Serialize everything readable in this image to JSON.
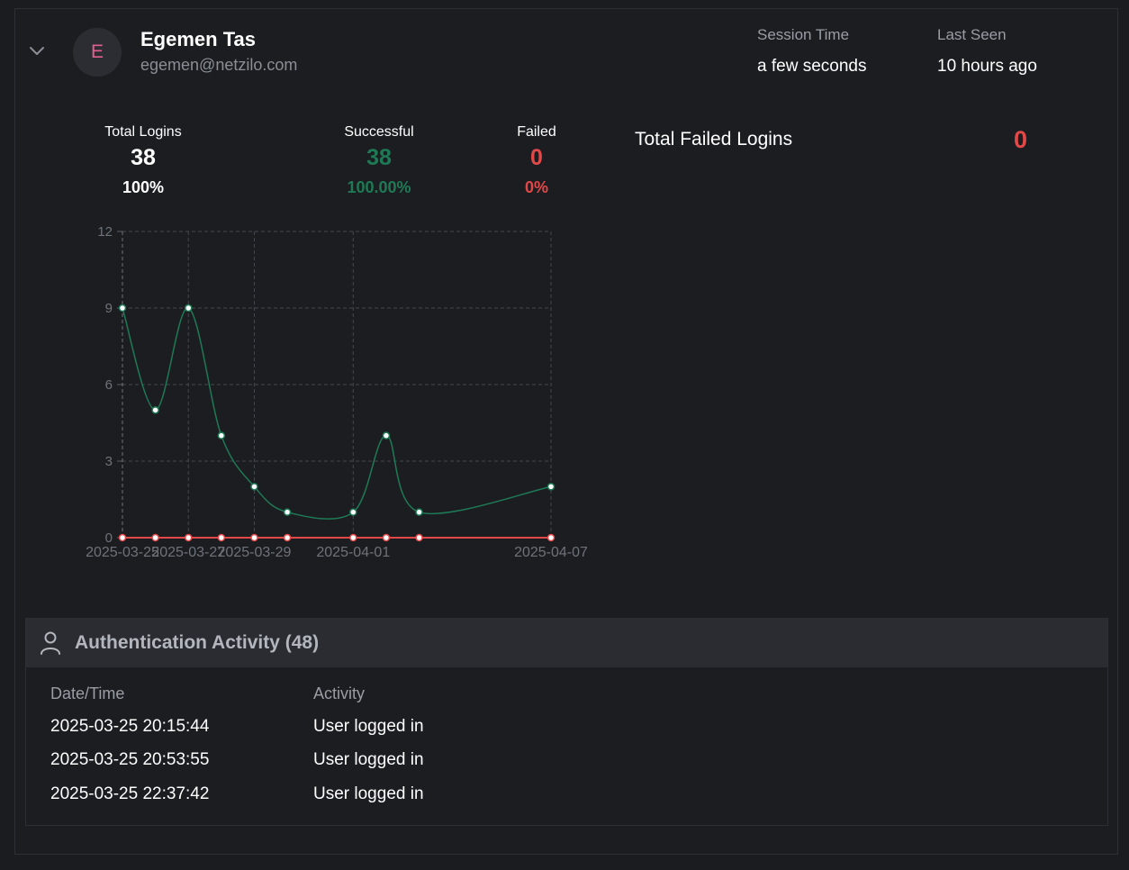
{
  "user": {
    "initial": "E",
    "name": "Egemen Tas",
    "email": "egemen@netzilo.com"
  },
  "meta": {
    "session_label": "Session Time",
    "session_value": "a few seconds",
    "last_seen_label": "Last Seen",
    "last_seen_value": "10 hours ago"
  },
  "stats": {
    "total_label": "Total Logins",
    "total_value": "38",
    "total_pct": "100%",
    "success_label": "Successful",
    "success_value": "38",
    "success_pct": "100.00%",
    "failed_label": "Failed",
    "failed_value": "0",
    "failed_pct": "0%"
  },
  "total_failed": {
    "label": "Total Failed Logins",
    "value": "0"
  },
  "colors": {
    "success": "#1e7a55",
    "failed": "#e24848",
    "accent_pink": "#e2608f"
  },
  "chart_data": {
    "type": "line",
    "x": [
      "2025-03-25",
      "2025-03-26",
      "2025-03-27",
      "2025-03-28",
      "2025-03-29",
      "2025-03-30",
      "2025-04-01",
      "2025-04-02",
      "2025-04-03",
      "2025-04-07"
    ],
    "x_tick_labels": [
      "2025-03-25",
      "2025-03-27",
      "2025-03-29",
      "2025-04-01",
      "2025-04-07"
    ],
    "y_ticks": [
      "0",
      "3",
      "6",
      "9",
      "12"
    ],
    "ylim": [
      0,
      12
    ],
    "grid": true,
    "series": [
      {
        "values": [
          9,
          5,
          9,
          4,
          2,
          1,
          1,
          4,
          1,
          2
        ],
        "color": "#1e7a55"
      },
      {
        "values": [
          0,
          0,
          0,
          0,
          0,
          0,
          0,
          0,
          0,
          0
        ],
        "color": "#e24848"
      }
    ]
  },
  "auth": {
    "title": "Authentication Activity (48)",
    "columns": [
      "Date/Time",
      "Activity"
    ],
    "rows": [
      [
        "2025-03-25 20:15:44",
        "User logged in"
      ],
      [
        "2025-03-25 20:53:55",
        "User logged in"
      ],
      [
        "2025-03-25 22:37:42",
        "User logged in"
      ]
    ]
  }
}
